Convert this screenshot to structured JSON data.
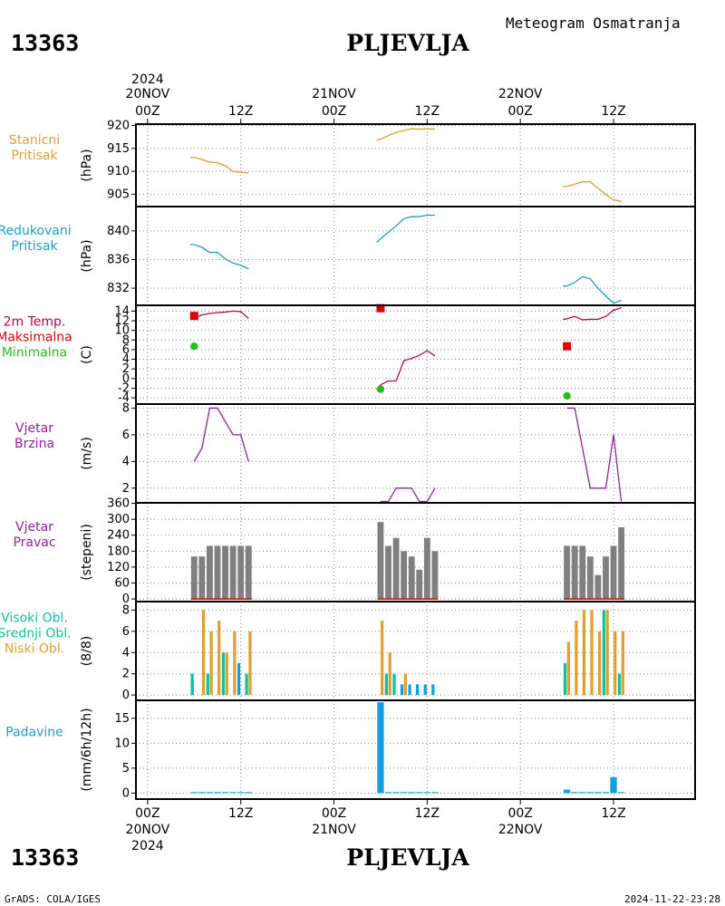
{
  "station": {
    "id": "13363",
    "name": "PLJEVLJA",
    "product": "Meteogram Osmatranja"
  },
  "time_axis": {
    "top_year": "2024",
    "top_dates": [
      "20NOV",
      "21NOV",
      "22NOV"
    ],
    "top_hours": [
      "00Z",
      "12Z",
      "00Z",
      "12Z",
      "00Z",
      "12Z"
    ],
    "bottom_hours": [
      "00Z",
      "12Z",
      "00Z",
      "12Z",
      "00Z",
      "12Z"
    ],
    "bottom_dates": [
      "20NOV",
      "21NOV",
      "22NOV"
    ],
    "bottom_year": "2024",
    "range_hours": [
      -1.5,
      70.5
    ]
  },
  "footer": {
    "left": "GrADS: COLA/IGES",
    "right": "2024-11-22-23:28"
  },
  "colors": {
    "orange": "#e0a030",
    "cyan": "#1aa0c8",
    "red": "#e00000",
    "green": "#20c020",
    "crimson": "#c00050",
    "purple": "#9020a0",
    "gray": "#808080",
    "teal": "#10c0a0",
    "blue": "#10a0e0"
  },
  "chart_data": [
    {
      "type": "line",
      "labels": [
        "Stanicni",
        "Pritisak"
      ],
      "label_color": "#e0a030",
      "ylabel": "(hPa)",
      "ylim": [
        902.3,
        920.3
      ],
      "yticks": [
        905,
        910,
        915,
        920
      ],
      "grid": true,
      "series": [
        {
          "color": "#e0a030",
          "x": [
            5.5,
            6,
            7,
            8,
            9,
            10,
            11,
            12,
            13
          ],
          "y": [
            913.0,
            913.0,
            912.6,
            912.0,
            911.9,
            911.2,
            910.0,
            909.8,
            909.6
          ]
        },
        {
          "color": "#e0a030",
          "x": [
            29.5,
            30,
            31,
            32,
            33,
            34,
            35,
            36,
            37
          ],
          "y": [
            916.8,
            917.0,
            917.8,
            918.5,
            918.9,
            919.3,
            919.2,
            919.3,
            919.2
          ]
        },
        {
          "color": "#e0a030",
          "x": [
            53.5,
            54,
            55,
            56,
            57,
            58,
            59,
            60,
            61
          ],
          "y": [
            906.7,
            906.7,
            907.2,
            907.7,
            907.7,
            906.3,
            904.9,
            903.8,
            903.4
          ]
        }
      ]
    },
    {
      "type": "line",
      "labels": [
        "Redukovani",
        "Pritisak"
      ],
      "label_color": "#1aa0c8",
      "ylabel": "(hPa)",
      "ylim": [
        829.6,
        843.4
      ],
      "yticks": [
        832,
        836,
        840
      ],
      "grid": true,
      "series": [
        {
          "color": "#1aa0c8",
          "x": [
            5.5,
            6,
            7,
            8,
            9,
            10,
            11,
            12,
            13
          ],
          "y": [
            838.1,
            838.1,
            837.7,
            837.0,
            837.0,
            836.1,
            835.5,
            835.2,
            834.7
          ]
        },
        {
          "color": "#1aa0c8",
          "x": [
            29.5,
            30,
            31,
            32,
            33,
            34,
            35,
            36,
            37
          ],
          "y": [
            838.4,
            838.9,
            839.8,
            840.7,
            841.7,
            842.0,
            842.0,
            842.2,
            842.2
          ]
        },
        {
          "color": "#1aa0c8",
          "x": [
            53.5,
            54,
            55,
            56,
            57,
            58,
            59,
            60,
            61
          ],
          "y": [
            832.3,
            832.3,
            832.8,
            833.6,
            833.3,
            832.0,
            830.9,
            829.9,
            830.3
          ]
        }
      ]
    },
    {
      "type": "line",
      "labels": [
        "2m Temp.",
        "Maksimalna",
        "Minimalna"
      ],
      "label_colors": [
        "#c00050",
        "#e00000",
        "#20c020"
      ],
      "ylabel": "(C)",
      "ylim": [
        -5.3,
        15.2
      ],
      "yticks": [
        -4,
        -2,
        0,
        2,
        4,
        6,
        8,
        10,
        12,
        14
      ],
      "grid": true,
      "series": [
        {
          "color": "#c00050",
          "x": [
            5.5,
            6,
            7,
            8,
            9,
            10,
            11,
            12,
            13
          ],
          "y": [
            12.5,
            12.6,
            13.2,
            13.5,
            13.7,
            13.8,
            14.0,
            13.9,
            12.5
          ]
        },
        {
          "color": "#c00050",
          "x": [
            29.5,
            30,
            31,
            32,
            33,
            34,
            35,
            36,
            37
          ],
          "y": [
            -2.3,
            -1.3,
            -0.5,
            -0.5,
            3.7,
            4.2,
            4.8,
            5.8,
            4.7
          ]
        },
        {
          "color": "#c00050",
          "x": [
            53.5,
            54,
            55,
            56,
            57,
            58,
            59,
            60,
            61
          ],
          "y": [
            12.3,
            12.4,
            12.9,
            12.2,
            12.3,
            12.3,
            12.9,
            14.2,
            14.7
          ]
        }
      ],
      "markers": [
        {
          "shape": "square",
          "color": "#e00000",
          "x": [
            6,
            30,
            54
          ],
          "y": [
            13.0,
            14.6,
            6.7
          ]
        },
        {
          "shape": "circle",
          "color": "#20c020",
          "x": [
            6,
            30,
            54
          ],
          "y": [
            6.7,
            -2.2,
            -3.6
          ]
        }
      ]
    },
    {
      "type": "line",
      "labels": [
        "Vjetar",
        "Brzina"
      ],
      "label_color": "#9020a0",
      "ylabel": "(m/s)",
      "ylim": [
        0.9,
        8.3
      ],
      "yticks": [
        2,
        4,
        6,
        8
      ],
      "grid": true,
      "series": [
        {
          "color": "#9020a0",
          "x": [
            6,
            7,
            8,
            9,
            10,
            11,
            12,
            13
          ],
          "y": [
            4,
            5,
            8,
            8,
            7,
            6,
            6,
            4
          ]
        },
        {
          "color": "#9020a0",
          "x": [
            30,
            31,
            32,
            33,
            34,
            35,
            36,
            37
          ],
          "y": [
            1,
            1,
            2,
            2,
            2,
            1,
            1,
            2
          ]
        },
        {
          "color": "#9020a0",
          "x": [
            54,
            55,
            56,
            57,
            58,
            59,
            60,
            61
          ],
          "y": [
            8,
            8,
            5,
            2,
            2,
            2,
            6,
            1
          ]
        }
      ]
    },
    {
      "type": "bar",
      "labels": [
        "Vjetar",
        "Pravac"
      ],
      "label_color": "#9020a0",
      "ylabel": "(stepeni)",
      "ylim": [
        -10,
        362
      ],
      "yticks": [
        0,
        60,
        120,
        180,
        240,
        300,
        360
      ],
      "grid": true,
      "bar_width_hours": 0.8,
      "groups": [
        {
          "color": "#808080",
          "x": [
            6,
            7,
            8,
            9,
            10,
            11,
            12,
            13
          ],
          "y": [
            160,
            160,
            200,
            200,
            200,
            200,
            200,
            200
          ]
        },
        {
          "color": "#808080",
          "x": [
            30,
            31,
            32,
            33,
            34,
            35,
            36,
            37
          ],
          "y": [
            290,
            200,
            230,
            180,
            160,
            110,
            230,
            180
          ]
        },
        {
          "color": "#808080",
          "x": [
            54,
            55,
            56,
            57,
            58,
            59,
            60,
            61
          ],
          "y": [
            200,
            200,
            200,
            160,
            90,
            160,
            200,
            270
          ]
        }
      ],
      "baseline_line": {
        "color": "#e00000",
        "value": 0
      }
    },
    {
      "type": "bar",
      "labels": [
        "Visoki Obl.",
        "Srednji Obl.",
        "Niski Obl."
      ],
      "label_colors": [
        "#10c0a0",
        "#10c0a0",
        "#e0a030"
      ],
      "ylabel": "(8/8)",
      "ylim": [
        -0.5,
        8.8
      ],
      "yticks": [
        0,
        2,
        4,
        6,
        8
      ],
      "grid": true,
      "bar_width_hours": 0.38,
      "series": [
        {
          "name": "Visoki Obl.",
          "color": "#10a0e0",
          "offset": -0.25,
          "x": [
            6,
            7,
            8,
            9,
            10,
            11,
            12,
            13,
            30,
            31,
            32,
            33,
            34,
            35,
            36,
            37,
            54,
            55,
            56,
            57,
            58,
            59,
            60,
            61
          ],
          "y": [
            1,
            0,
            0,
            0,
            0,
            0,
            3,
            0,
            0,
            0,
            0,
            1,
            1,
            1,
            1,
            1,
            0,
            0,
            0,
            0,
            0,
            0,
            0,
            0
          ]
        },
        {
          "name": "Srednji Obl.",
          "color": "#10c0a0",
          "offset": -0.25,
          "x": [
            6,
            7,
            8,
            9,
            10,
            11,
            12,
            13,
            30,
            31,
            32,
            33,
            34,
            35,
            36,
            37,
            54,
            55,
            56,
            57,
            58,
            59,
            60,
            61
          ],
          "y": [
            2,
            0,
            2,
            0,
            4,
            0,
            0,
            2,
            0,
            2,
            2,
            0,
            0,
            0,
            0,
            0,
            3,
            0,
            0,
            0,
            0,
            8,
            0,
            2
          ]
        },
        {
          "name": "Niski Obl.",
          "color": "#e0a030",
          "offset": 0.2,
          "x": [
            6,
            7,
            8,
            9,
            10,
            11,
            12,
            13,
            30,
            31,
            32,
            33,
            34,
            35,
            36,
            37,
            54,
            55,
            56,
            57,
            58,
            59,
            60,
            61
          ],
          "y": [
            0,
            8,
            6,
            7,
            4,
            6,
            0,
            6,
            7,
            4,
            0,
            2,
            0,
            0,
            0,
            0,
            5,
            7,
            8,
            8,
            6,
            8,
            6,
            6
          ]
        }
      ]
    },
    {
      "type": "bar",
      "labels": [
        "Padavine"
      ],
      "label_color": "#1aa0c8",
      "ylabel": "(mm/6h/12h)",
      "ylim": [
        -1.2,
        18.6
      ],
      "yticks": [
        0,
        5,
        10,
        15
      ],
      "grid": true,
      "bar_width_hours": 0.85,
      "groups": [
        {
          "color": "#10a0e0",
          "x": [
            6,
            7,
            8,
            9,
            10,
            11,
            12,
            13
          ],
          "y": [
            0.2,
            0.2,
            0.2,
            0.2,
            0.2,
            0.2,
            0.2,
            0.2
          ]
        },
        {
          "color": "#10a0e0",
          "x": [
            30,
            31,
            32,
            33,
            34,
            35,
            36,
            37
          ],
          "y": [
            18.2,
            0.2,
            0.2,
            0.2,
            0.2,
            0.2,
            0.2,
            0.2
          ]
        },
        {
          "color": "#10a0e0",
          "x": [
            54,
            55,
            56,
            57,
            58,
            59,
            60,
            61
          ],
          "y": [
            0.7,
            0.2,
            0.2,
            0.2,
            0.2,
            0.2,
            3.2,
            0.2
          ]
        }
      ]
    }
  ]
}
